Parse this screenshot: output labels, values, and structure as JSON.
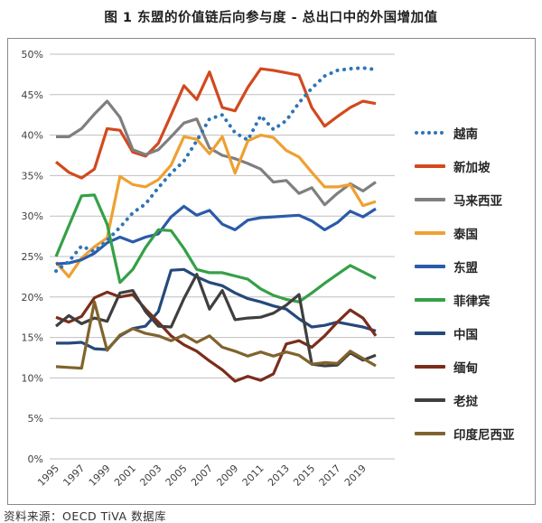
{
  "title": "图 1  东盟的价值链后向参与度 - 总出口中的外国增加值",
  "source_note": "资料来源：OECD TiVA 数据库",
  "colors": {
    "grid": "#bfbfbf",
    "frame": "#8a8a8a",
    "axis_text": "#404040"
  },
  "chart_data": {
    "type": "line",
    "title": "图 1  东盟的价值链后向参与度 - 总出口中的外国增加值",
    "x": [
      1995,
      1996,
      1997,
      1998,
      1999,
      2000,
      2001,
      2002,
      2003,
      2004,
      2005,
      2006,
      2007,
      2008,
      2009,
      2010,
      2011,
      2012,
      2013,
      2014,
      2015,
      2016,
      2017,
      2018,
      2019,
      2020
    ],
    "x_tick_labels": [
      "1995",
      "1997",
      "1999",
      "2001",
      "2003",
      "2005",
      "2007",
      "2009",
      "2011",
      "2013",
      "2015",
      "2017",
      "2019"
    ],
    "y_ticks": [
      0,
      5,
      10,
      15,
      20,
      25,
      30,
      35,
      40,
      45,
      50
    ],
    "ylim": [
      0,
      50
    ],
    "y_unit": "%",
    "grid": "horizontal",
    "legend_position": "right",
    "series": [
      {
        "id": "vietnam",
        "name": "越南",
        "color": "#2E75B6",
        "style": "dotted",
        "values": [
          23.2,
          24.4,
          26.3,
          25.6,
          27.0,
          28.6,
          30.4,
          31.5,
          33.5,
          35.3,
          36.8,
          39.3,
          42.0,
          42.5,
          40.3,
          39.4,
          42.4,
          40.7,
          41.8,
          44.0,
          45.8,
          47.3,
          48.0,
          48.2,
          48.3,
          48.1
        ]
      },
      {
        "id": "singapore",
        "name": "新加坡",
        "color": "#D2491E",
        "style": "solid",
        "values": [
          36.7,
          35.4,
          34.7,
          35.8,
          40.8,
          40.6,
          37.9,
          37.4,
          39.0,
          42.5,
          46.1,
          44.4,
          47.8,
          43.4,
          43.0,
          45.9,
          48.2,
          48.0,
          47.7,
          47.4,
          43.4,
          41.1,
          42.3,
          43.4,
          44.2,
          43.9
        ]
      },
      {
        "id": "malaysia",
        "name": "马来西亚",
        "color": "#7F7F7F",
        "style": "solid",
        "values": [
          39.8,
          39.8,
          40.8,
          42.6,
          44.2,
          42.2,
          38.2,
          37.6,
          38.2,
          39.8,
          41.5,
          42.0,
          38.4,
          37.5,
          37.1,
          36.5,
          35.8,
          34.2,
          34.4,
          32.8,
          33.5,
          31.4,
          32.8,
          34.0,
          33.1,
          34.2
        ]
      },
      {
        "id": "thailand",
        "name": "泰国",
        "color": "#EFA032",
        "style": "solid",
        "values": [
          24.3,
          22.5,
          24.8,
          26.2,
          27.3,
          34.9,
          33.9,
          33.6,
          34.5,
          36.3,
          39.8,
          39.5,
          37.7,
          39.8,
          35.3,
          39.3,
          40.0,
          39.7,
          38.1,
          37.3,
          35.4,
          33.6,
          33.6,
          33.9,
          31.3,
          31.8
        ]
      },
      {
        "id": "asean",
        "name": "东盟",
        "color": "#2B5BA9",
        "style": "solid",
        "values": [
          24.1,
          24.2,
          24.6,
          25.4,
          26.7,
          27.4,
          26.8,
          27.4,
          27.8,
          29.9,
          31.2,
          30.1,
          30.7,
          29.0,
          28.3,
          29.5,
          29.8,
          29.9,
          30.0,
          30.1,
          29.4,
          28.3,
          29.2,
          30.6,
          29.9,
          30.9
        ]
      },
      {
        "id": "philippines",
        "name": "菲律宾",
        "color": "#35A047",
        "style": "solid",
        "values": [
          25.0,
          28.8,
          32.5,
          32.6,
          29.0,
          21.8,
          23.4,
          26.1,
          28.3,
          28.2,
          26.0,
          23.4,
          23.0,
          23.0,
          22.6,
          22.2,
          21.0,
          20.2,
          19.7,
          19.4,
          20.5,
          21.7,
          22.8,
          23.9,
          23.1,
          22.3
        ]
      },
      {
        "id": "china",
        "name": "中国",
        "color": "#26497B",
        "style": "solid",
        "values": [
          14.3,
          14.3,
          14.4,
          13.6,
          13.5,
          15.2,
          16.1,
          16.4,
          18.2,
          23.3,
          23.4,
          22.5,
          21.8,
          21.4,
          20.5,
          19.8,
          19.4,
          18.9,
          18.5,
          17.3,
          16.3,
          16.5,
          16.9,
          16.6,
          16.3,
          15.8
        ]
      },
      {
        "id": "myanmar",
        "name": "缅甸",
        "color": "#7B2D1B",
        "style": "solid",
        "values": [
          17.5,
          16.9,
          17.6,
          19.9,
          20.6,
          20.0,
          20.3,
          18.5,
          16.9,
          15.2,
          14.1,
          13.3,
          12.1,
          11.0,
          9.6,
          10.2,
          9.7,
          10.5,
          14.2,
          14.6,
          13.8,
          15.2,
          16.9,
          18.4,
          17.4,
          15.2
        ]
      },
      {
        "id": "laos",
        "name": "老挝",
        "color": "#3F3F3F",
        "style": "solid",
        "values": [
          16.4,
          17.7,
          16.7,
          17.4,
          17.0,
          20.5,
          20.8,
          18.2,
          16.4,
          16.3,
          19.8,
          22.8,
          18.5,
          20.8,
          17.2,
          17.4,
          17.5,
          18.0,
          19.0,
          20.3,
          11.7,
          11.5,
          11.6,
          13.1,
          12.2,
          12.8
        ]
      },
      {
        "id": "indonesia",
        "name": "印度尼西亚",
        "color": "#80632E",
        "style": "solid",
        "values": [
          11.4,
          11.3,
          11.2,
          19.4,
          13.4,
          15.3,
          16.1,
          15.5,
          15.2,
          14.6,
          15.3,
          14.4,
          15.2,
          13.8,
          13.3,
          12.7,
          13.2,
          12.7,
          13.2,
          12.8,
          11.7,
          11.9,
          11.8,
          13.3,
          12.4,
          11.5
        ]
      }
    ]
  }
}
